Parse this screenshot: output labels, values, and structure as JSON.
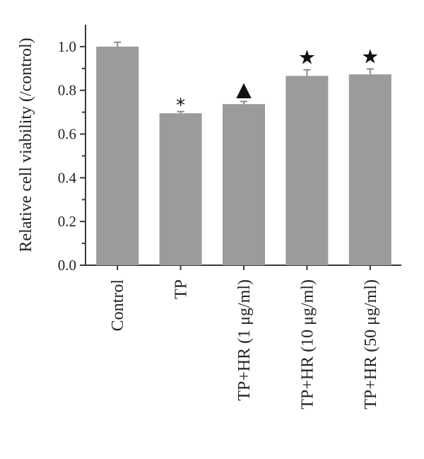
{
  "chart_data": {
    "type": "bar",
    "title": "",
    "xlabel": "",
    "ylabel": "Relative cell viability (/control)",
    "ylim": [
      0,
      1.1
    ],
    "yticks": [
      "0.0",
      "0.2",
      "0.4",
      "0.6",
      "0.8",
      "1.0"
    ],
    "categories": [
      "Control",
      "TP",
      "TP+HR (1 μg/ml)",
      "TP+HR (10 μg/ml)",
      "TP+HR (50 μg/ml)"
    ],
    "values": [
      1.0,
      0.695,
      0.737,
      0.866,
      0.873
    ],
    "errors": [
      0.02,
      0.008,
      0.012,
      0.028,
      0.025
    ],
    "markers": [
      "",
      "*",
      "▲",
      "★",
      "★"
    ],
    "bar_color": "#9b9b9b",
    "error_color": "#8a8a8a",
    "grid": false
  }
}
